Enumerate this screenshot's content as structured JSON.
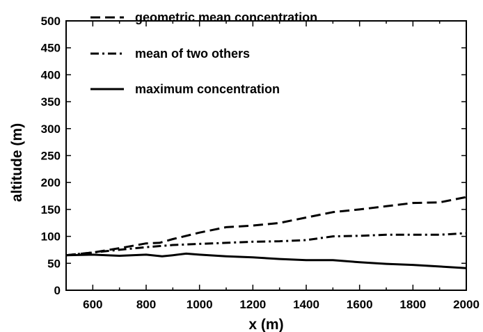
{
  "chart_data": {
    "type": "line",
    "title": "",
    "xlabel": "x (m)",
    "ylabel": "altitude (m)",
    "xlim": [
      500,
      2000
    ],
    "ylim": [
      0,
      500
    ],
    "x_ticks": [
      600,
      800,
      1000,
      1200,
      1400,
      1600,
      1800,
      2000
    ],
    "y_ticks": [
      0,
      50,
      100,
      150,
      200,
      250,
      300,
      350,
      400,
      450,
      500
    ],
    "grid": false,
    "legend_position": "top-left",
    "series": [
      {
        "name": "geometric mean concentration",
        "style": "dashed",
        "color": "#000000",
        "points": [
          [
            500,
            65
          ],
          [
            600,
            70
          ],
          [
            700,
            78
          ],
          [
            800,
            87
          ],
          [
            850,
            88
          ],
          [
            900,
            95
          ],
          [
            1000,
            107
          ],
          [
            1050,
            112
          ],
          [
            1100,
            117
          ],
          [
            1200,
            120
          ],
          [
            1300,
            125
          ],
          [
            1400,
            135
          ],
          [
            1500,
            145
          ],
          [
            1600,
            150
          ],
          [
            1700,
            156
          ],
          [
            1800,
            162
          ],
          [
            1900,
            163
          ],
          [
            2000,
            173
          ]
        ]
      },
      {
        "name": "mean of two others",
        "style": "dashdot",
        "color": "#000000",
        "points": [
          [
            500,
            65
          ],
          [
            600,
            70
          ],
          [
            700,
            75
          ],
          [
            800,
            80
          ],
          [
            900,
            84
          ],
          [
            1000,
            86
          ],
          [
            1100,
            88
          ],
          [
            1200,
            90
          ],
          [
            1300,
            91
          ],
          [
            1400,
            93
          ],
          [
            1500,
            100
          ],
          [
            1600,
            101
          ],
          [
            1700,
            103
          ],
          [
            1800,
            103
          ],
          [
            1900,
            103
          ],
          [
            2000,
            106
          ]
        ]
      },
      {
        "name": "maximum concentration",
        "style": "solid",
        "color": "#000000",
        "points": [
          [
            500,
            65
          ],
          [
            600,
            66
          ],
          [
            700,
            64
          ],
          [
            800,
            66
          ],
          [
            860,
            63
          ],
          [
            900,
            65
          ],
          [
            950,
            68
          ],
          [
            1000,
            66
          ],
          [
            1100,
            63
          ],
          [
            1200,
            61
          ],
          [
            1300,
            58
          ],
          [
            1400,
            56
          ],
          [
            1500,
            56
          ],
          [
            1600,
            52
          ],
          [
            1700,
            49
          ],
          [
            1800,
            47
          ],
          [
            1900,
            44
          ],
          [
            2000,
            41
          ]
        ]
      }
    ]
  }
}
